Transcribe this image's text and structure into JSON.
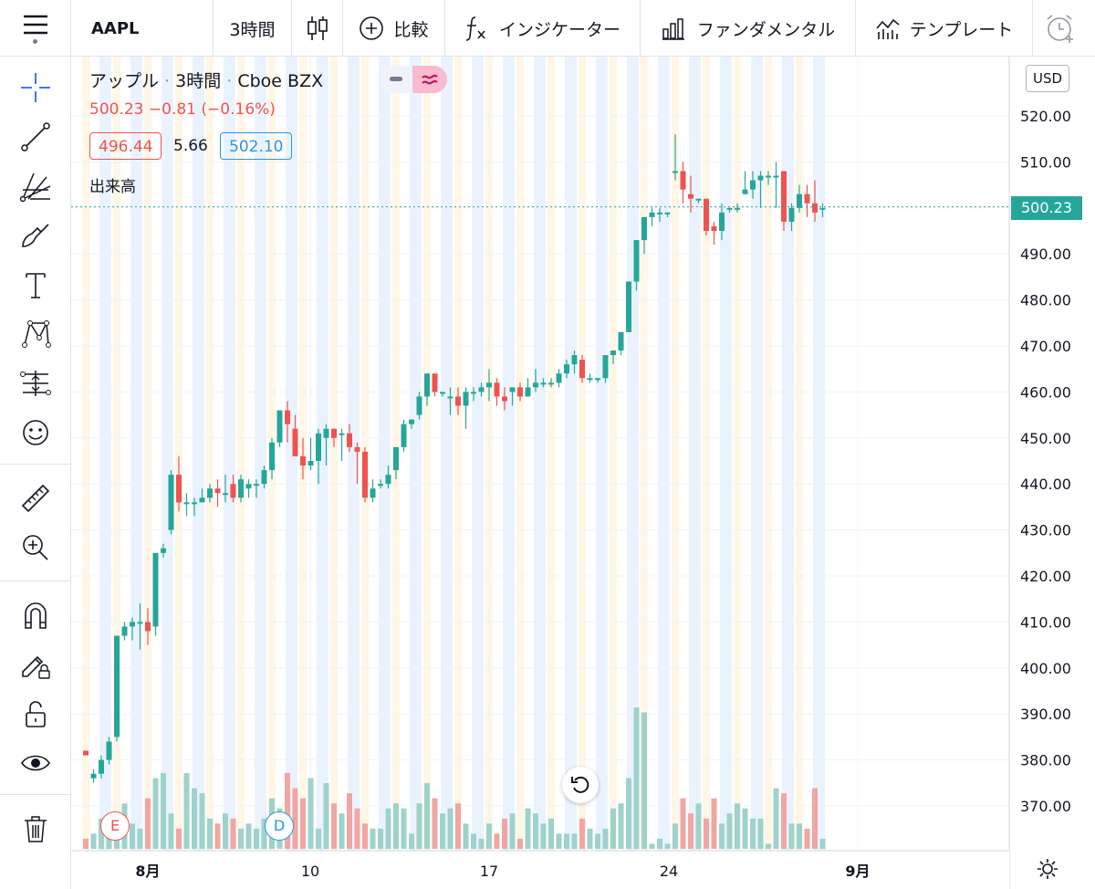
{
  "toolbar": {
    "symbol": "AAPL",
    "interval": "3時間",
    "compare": "比較",
    "indicators": "インジケーター",
    "fundamentals": "ファンダメンタル",
    "templates": "テンプレート"
  },
  "legend": {
    "name": "アップル",
    "interval": "3時間",
    "exchange": "Cboe BZX",
    "price": "500.23",
    "change": "−0.81",
    "change_pct": "(−0.16%)",
    "bid": "496.44",
    "spread": "5.66",
    "ask": "502.10",
    "volume_label": "出来高"
  },
  "currency": "USD",
  "last_price_label": "500.23",
  "colors": {
    "up": "#26a69a",
    "down": "#ef5350",
    "up_vol": "#9ed2ca",
    "down_vol": "#f0a6a4",
    "accent": "#2962ff",
    "text": "#131722"
  },
  "markers": {
    "earnings": "E",
    "dividend": "D"
  },
  "chart_data": {
    "type": "candlestick",
    "interval": "3時間",
    "ylim": [
      360,
      530
    ],
    "y_ticks": [
      "520.00",
      "510.00",
      "500.00",
      "490.00",
      "480.00",
      "470.00",
      "460.00",
      "450.00",
      "440.00",
      "430.00",
      "420.00",
      "410.00",
      "400.00",
      "390.00",
      "380.00",
      "370.00"
    ],
    "x_labels": [
      "8月",
      "10",
      "17",
      "24",
      "9月"
    ],
    "candles": [
      [
        382,
        382,
        381,
        381
      ],
      [
        376,
        378,
        375,
        377
      ],
      [
        377,
        381,
        376,
        380
      ],
      [
        380,
        385,
        379,
        384
      ],
      [
        385,
        407,
        384,
        407
      ],
      [
        407,
        410,
        406,
        409
      ],
      [
        409,
        411,
        406,
        410
      ],
      [
        410,
        414,
        404,
        410
      ],
      [
        410,
        413,
        405,
        408
      ],
      [
        409,
        425,
        407,
        425
      ],
      [
        425,
        427,
        424,
        426
      ],
      [
        430,
        443,
        429,
        442
      ],
      [
        442,
        446,
        434,
        436
      ],
      [
        436,
        438,
        433,
        436
      ],
      [
        436,
        437,
        433,
        436
      ],
      [
        436,
        439,
        436,
        437
      ],
      [
        437,
        440,
        436,
        439
      ],
      [
        439,
        441,
        435,
        438
      ],
      [
        438,
        442,
        436,
        438
      ],
      [
        440,
        442,
        436,
        437
      ],
      [
        437,
        442,
        436,
        441
      ],
      [
        439,
        441,
        437,
        440
      ],
      [
        440,
        441,
        437,
        440
      ],
      [
        440,
        444,
        439,
        443
      ],
      [
        443,
        450,
        441,
        449
      ],
      [
        449,
        456,
        448,
        456
      ],
      [
        456,
        458,
        449,
        453
      ],
      [
        452,
        455,
        446,
        446
      ],
      [
        446,
        450,
        441,
        444
      ],
      [
        444,
        450,
        443,
        445
      ],
      [
        445,
        452,
        440,
        451
      ],
      [
        450,
        453,
        444,
        452
      ],
      [
        452,
        452,
        448,
        450
      ],
      [
        451,
        452,
        445,
        451
      ],
      [
        451,
        453,
        447,
        448
      ],
      [
        448,
        449,
        440,
        447
      ],
      [
        447,
        448,
        436,
        437
      ],
      [
        437,
        441,
        436,
        439
      ],
      [
        440,
        441,
        439,
        440
      ],
      [
        440,
        444,
        439,
        442
      ],
      [
        443,
        448,
        441,
        448
      ],
      [
        448,
        454,
        447,
        453
      ],
      [
        453,
        454,
        452,
        454
      ],
      [
        455,
        460,
        454,
        459
      ],
      [
        459,
        464,
        457,
        464
      ],
      [
        464,
        464,
        459,
        460
      ],
      [
        460,
        460,
        459,
        460
      ],
      [
        459,
        461,
        455,
        459
      ],
      [
        459,
        461,
        455,
        457
      ],
      [
        457,
        461,
        452,
        460
      ],
      [
        460,
        461,
        458,
        460
      ],
      [
        460,
        462,
        459,
        461
      ],
      [
        461,
        465,
        458,
        462
      ],
      [
        462,
        463,
        457,
        459
      ],
      [
        459,
        461,
        456,
        458
      ],
      [
        460,
        461,
        457,
        461
      ],
      [
        461,
        462,
        458,
        459
      ],
      [
        459,
        463,
        459,
        461
      ],
      [
        461,
        465,
        460,
        462
      ],
      [
        462,
        463,
        461,
        462
      ],
      [
        462,
        463,
        461,
        462
      ],
      [
        462,
        465,
        461,
        464
      ],
      [
        464,
        467,
        463,
        466
      ],
      [
        466,
        469,
        464,
        468
      ],
      [
        467,
        468,
        462,
        463
      ],
      [
        463,
        464,
        462,
        463
      ],
      [
        463,
        463,
        462,
        463
      ],
      [
        463,
        468,
        462,
        468
      ],
      [
        468,
        469,
        466,
        469
      ],
      [
        469,
        473,
        468,
        473
      ],
      [
        473,
        484,
        473,
        484
      ],
      [
        484,
        493,
        482,
        493
      ],
      [
        493,
        498,
        490,
        498
      ],
      [
        498,
        500,
        496,
        499
      ],
      [
        499,
        500,
        497,
        499
      ],
      [
        499,
        499,
        498,
        499
      ],
      [
        508,
        516,
        506,
        508
      ],
      [
        508,
        510,
        501,
        504
      ],
      [
        503,
        507,
        499,
        502
      ],
      [
        502,
        502,
        501,
        502
      ],
      [
        502,
        502,
        494,
        495
      ],
      [
        496,
        497,
        492,
        495
      ],
      [
        495,
        501,
        493,
        499
      ],
      [
        500,
        500,
        499,
        500
      ],
      [
        500,
        501,
        499,
        500
      ],
      [
        503,
        508,
        503,
        504
      ],
      [
        504,
        508,
        502,
        506
      ],
      [
        506,
        508,
        500,
        507
      ],
      [
        507,
        508,
        505,
        507
      ],
      [
        507,
        510,
        500,
        507
      ],
      [
        508,
        508,
        495,
        497
      ],
      [
        497,
        501,
        495,
        500
      ],
      [
        500,
        505,
        499,
        503
      ],
      [
        503,
        505,
        498,
        501
      ],
      [
        501,
        506,
        497,
        499
      ],
      [
        500,
        501,
        498,
        500
      ]
    ],
    "volume": [
      2,
      3,
      6,
      5,
      4,
      9,
      5,
      4,
      10,
      14,
      15,
      7,
      4,
      15,
      12,
      11,
      6,
      5,
      7,
      6,
      4,
      5,
      4,
      6,
      10,
      8,
      15,
      12,
      10,
      14,
      4,
      13,
      9,
      7,
      11,
      8,
      5,
      4,
      4,
      8,
      9,
      8,
      3,
      9,
      13,
      10,
      7,
      8,
      9,
      5,
      3,
      2,
      5,
      3,
      6,
      7,
      2,
      8,
      7,
      5,
      6,
      3,
      3,
      3,
      6,
      4,
      3,
      4,
      8,
      9,
      14,
      28,
      27,
      1,
      2,
      1,
      5,
      10,
      7,
      9,
      6,
      10,
      5,
      7,
      9,
      8,
      6,
      6,
      1,
      12,
      11,
      5,
      5,
      4,
      12,
      2
    ],
    "series": [
      {
        "name": "出来高",
        "values": "volume"
      }
    ]
  }
}
